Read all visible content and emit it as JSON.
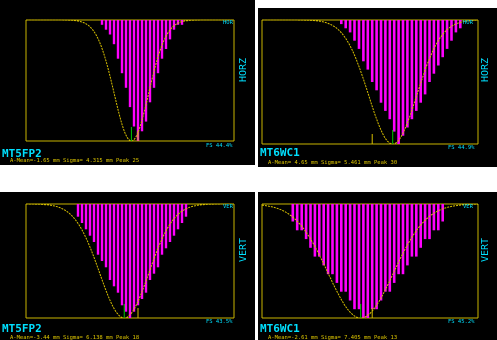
{
  "colors": {
    "background": "#000000",
    "frame": "#c8b400",
    "bars": "#ff00ff",
    "fit": "#d8c000",
    "mean_marker": "#00c800",
    "text_cyan": "#00e0ff",
    "text_yellow": "#e0c800"
  },
  "chart_data": [
    {
      "type": "bar",
      "name": "MT5FP2",
      "axis_label": "HORZ",
      "corner_tag": "HOR",
      "fs_label": "FS",
      "fs_value": "44.4%",
      "stats": "A-Mean=-1.65 mm  Sigma= 4.315 mm Peak 25",
      "mean_label": "A-Mean=-1.65 mm",
      "sigma_label": "Sigma= 4.315 mm",
      "peak_label": "Peak 25",
      "x": [
        -9,
        -8,
        -7,
        -6,
        -5,
        -4,
        -3,
        -2,
        -1,
        0,
        1,
        2,
        3,
        4,
        5,
        6,
        7,
        8,
        9,
        10,
        11
      ],
      "values": [
        1,
        2,
        3,
        5,
        8,
        11,
        14,
        18,
        22,
        25,
        23,
        21,
        17,
        14,
        11,
        8,
        6,
        4,
        2,
        1,
        1
      ],
      "xlim": [
        -28,
        24
      ],
      "ylim": [
        0,
        25
      ],
      "fit": {
        "type": "gaussian",
        "mean": -1.65,
        "sigma": 4.315,
        "peak": 25
      }
    },
    {
      "type": "bar",
      "name": "MT6WC1",
      "axis_label": "HORZ",
      "corner_tag": "HOR",
      "fs_label": "FS",
      "fs_value": "44.9%",
      "stats": "A-Mean= 4.65 mm  Sigma= 5.461 mm Peak 30",
      "mean_label": "A-Mean= 4.65 mm",
      "sigma_label": "Sigma= 5.461 mm",
      "peak_label": "Peak 30",
      "x": [
        -7,
        -6,
        -5,
        -4,
        -3,
        -2,
        -1,
        0,
        1,
        2,
        3,
        4,
        5,
        6,
        7,
        8,
        9,
        10,
        11,
        12,
        13,
        14,
        15,
        16,
        17,
        18,
        19,
        20
      ],
      "values": [
        1,
        2,
        3,
        5,
        7,
        10,
        12,
        15,
        17,
        20,
        22,
        24,
        27,
        30,
        28,
        26,
        24,
        22,
        20,
        18,
        15,
        13,
        11,
        9,
        7,
        5,
        3,
        2
      ],
      "xlim": [
        -25,
        24
      ],
      "ylim": [
        0,
        30
      ],
      "fit": {
        "type": "gaussian",
        "mean": 4.65,
        "sigma": 5.461,
        "peak": 30
      }
    },
    {
      "type": "bar",
      "name": "MT5FP2",
      "axis_label": "VERT",
      "corner_tag": "VER",
      "fs_label": "FS",
      "fs_value": "43.5%",
      "stats": "A-Mean=-3.44 mm  Sigma= 6.138 mm Peak 18",
      "mean_label": "A-Mean=-3.44 mm",
      "sigma_label": "Sigma= 6.138 mm",
      "peak_label": "Peak 18",
      "x": [
        -15,
        -14,
        -13,
        -12,
        -11,
        -10,
        -9,
        -8,
        -7,
        -6,
        -5,
        -4,
        -3,
        -2,
        -1,
        0,
        1,
        2,
        3,
        4,
        5,
        6,
        7,
        8,
        9,
        10,
        11,
        12
      ],
      "values": [
        2,
        3,
        4,
        5,
        6,
        8,
        9,
        10,
        12,
        13,
        14,
        16,
        17,
        18,
        17,
        16,
        15,
        14,
        12,
        11,
        10,
        8,
        7,
        6,
        5,
        4,
        3,
        2
      ],
      "xlim": [
        -28,
        24
      ],
      "ylim": [
        0,
        18
      ],
      "fit": {
        "type": "gaussian",
        "mean": -3.44,
        "sigma": 6.138,
        "peak": 18
      }
    },
    {
      "type": "bar",
      "name": "MT6WC1",
      "axis_label": "VERT",
      "corner_tag": "VER",
      "fs_label": "FS",
      "fs_value": "45.2%",
      "stats": "A-Mean=-2.61 mm  Sigma= 7.405 mm Peak 13",
      "mean_label": "A-Mean=-2.61 mm",
      "sigma_label": "Sigma= 7.405 mm",
      "peak_label": "Peak 13",
      "x": [
        -18,
        -17,
        -16,
        -15,
        -14,
        -13,
        -12,
        -11,
        -10,
        -9,
        -8,
        -7,
        -6,
        -5,
        -4,
        -3,
        -2,
        -1,
        0,
        1,
        2,
        3,
        4,
        5,
        6,
        7,
        8,
        9,
        10,
        11,
        12,
        13,
        14,
        15,
        16
      ],
      "values": [
        2,
        3,
        3,
        4,
        5,
        6,
        6,
        7,
        8,
        8,
        9,
        10,
        10,
        11,
        12,
        12,
        13,
        13,
        12,
        12,
        11,
        10,
        10,
        9,
        8,
        8,
        7,
        6,
        6,
        5,
        4,
        4,
        3,
        3,
        2
      ],
      "xlim": [
        -25,
        24
      ],
      "ylim": [
        0,
        13
      ],
      "fit": {
        "type": "gaussian",
        "mean": -2.61,
        "sigma": 7.405,
        "peak": 13
      }
    }
  ]
}
